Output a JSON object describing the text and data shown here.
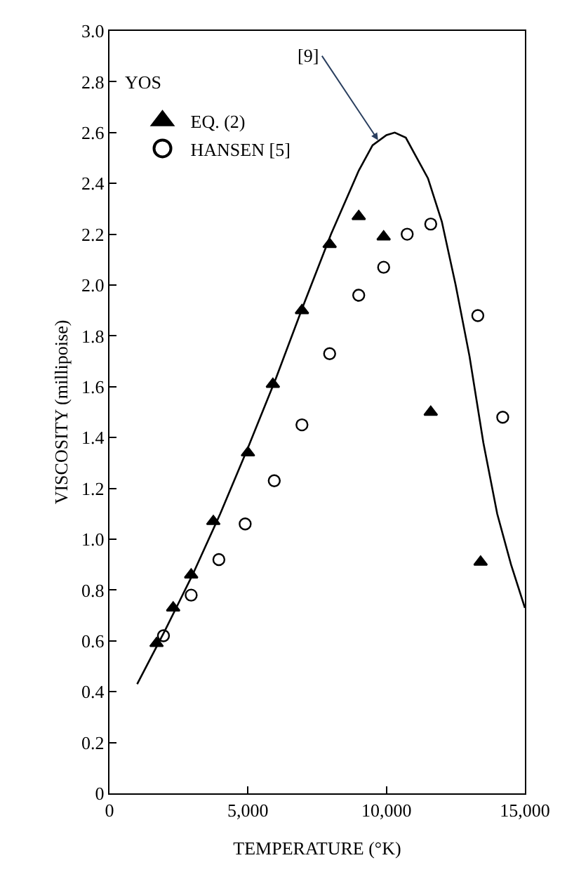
{
  "chart_data": {
    "type": "scatter",
    "xlabel": "TEMPERATURE (°K)",
    "ylabel": "VISCOSITY (millipoise)",
    "xlim": [
      0,
      15000
    ],
    "ylim": [
      0,
      3.0
    ],
    "xticks": [
      0,
      {
        "value": 5000,
        "label": "5,000"
      },
      {
        "value": 10000,
        "label": "10,000"
      },
      {
        "value": 15000,
        "label": "15,000"
      }
    ],
    "yticks": [
      0,
      {
        "value": 0.2,
        "label": "0.2"
      },
      {
        "value": 0.4,
        "label": "0.4"
      },
      {
        "value": 0.6,
        "label": "0.6"
      },
      {
        "value": 0.8,
        "label": "0.8"
      },
      {
        "value": 1.0,
        "label": "1.0"
      },
      {
        "value": 1.2,
        "label": "1.2"
      },
      {
        "value": 1.4,
        "label": "1.4"
      },
      {
        "value": 1.6,
        "label": "1.6"
      },
      {
        "value": 1.8,
        "label": "1.8"
      },
      {
        "value": 2.0,
        "label": "2.0"
      },
      {
        "value": 2.2,
        "label": "2.2"
      },
      {
        "value": 2.4,
        "label": "2.4"
      },
      {
        "value": 2.6,
        "label": "2.6"
      },
      {
        "value": 2.8,
        "label": "2.8"
      },
      {
        "value": 3.0,
        "label": "3.0"
      }
    ],
    "legend": "top left",
    "annotations": [
      "YOS",
      {
        "text": "[9]",
        "x": 9700,
        "y": 2.57
      }
    ],
    "series": [
      {
        "type": "line",
        "color": "#000000",
        "marker": "none",
        "line_style": "solid",
        "x": [
          1000,
          2000,
          3000,
          4000,
          5000,
          6000,
          7000,
          8000,
          9000,
          9500,
          10000,
          10300,
          10700,
          11000,
          11500,
          12000,
          12500,
          13000,
          13500,
          14000,
          14500,
          15000
        ],
        "values": [
          0.43,
          0.64,
          0.86,
          1.1,
          1.36,
          1.63,
          1.92,
          2.2,
          2.45,
          2.55,
          2.59,
          2.6,
          2.58,
          2.52,
          2.42,
          2.25,
          2.0,
          1.72,
          1.38,
          1.1,
          0.9,
          0.73
        ]
      },
      {
        "name": "EQ. (2)",
        "color": "#000000",
        "marker": "triangle",
        "x": [
          1700,
          2300,
          2950,
          3750,
          5000,
          5900,
          6950,
          7950,
          9000,
          9900,
          11600,
          13400
        ],
        "values": [
          0.59,
          0.73,
          0.86,
          1.07,
          1.34,
          1.61,
          1.9,
          2.16,
          2.27,
          2.19,
          1.5,
          0.91
        ]
      },
      {
        "name": "HANSEN [5]",
        "color": "#000000",
        "marker": "circle",
        "x": [
          1950,
          2950,
          3950,
          4900,
          5950,
          6950,
          7950,
          9000,
          9900,
          10750,
          11600,
          13300,
          14200
        ],
        "values": [
          0.62,
          0.78,
          0.92,
          1.06,
          1.23,
          1.45,
          1.73,
          1.96,
          2.07,
          2.2,
          2.24,
          1.88,
          1.48
        ]
      }
    ]
  }
}
